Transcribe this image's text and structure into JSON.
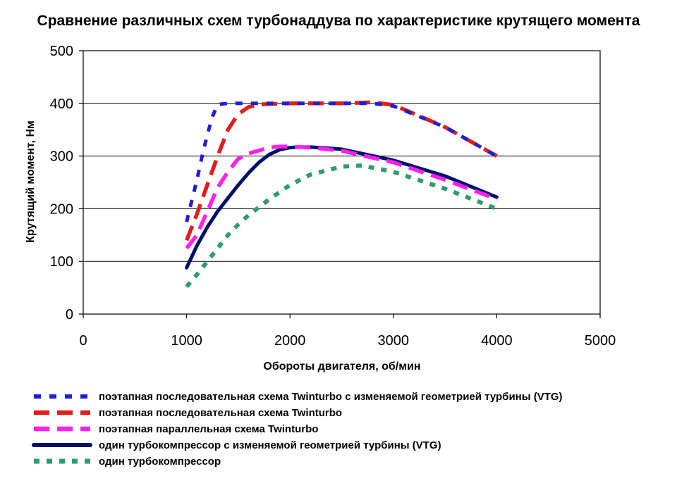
{
  "chart_data": {
    "type": "line",
    "title": "Сравнение различных схем турбонаддува по характеристике крутящего момента",
    "xlabel": "Обороты двигателя, об/мин",
    "ylabel": "Крутящий момент, Нм",
    "xlim": [
      0,
      5000
    ],
    "ylim": [
      0,
      500
    ],
    "xticks": [
      0,
      1000,
      2000,
      3000,
      4000,
      5000
    ],
    "yticks": [
      0,
      100,
      200,
      300,
      400,
      500
    ],
    "grid": "horizontal",
    "legend_position": "bottom",
    "series": [
      {
        "name": "поэтапная последовательная схема Twinturbo с изменяемой геометрией турбины (VTG)",
        "color": "#1f1fd6",
        "style": "dash-short",
        "x": [
          1000,
          1050,
          1100,
          1150,
          1200,
          1250,
          1300,
          1400,
          1500,
          2000,
          2500,
          2800,
          3000,
          3500,
          4000
        ],
        "y": [
          175,
          215,
          255,
          300,
          340,
          375,
          398,
          400,
          400,
          400,
          400,
          400,
          395,
          355,
          300
        ]
      },
      {
        "name": "поэтапная последовательная схема Twinturbo",
        "color": "#e01e1e",
        "style": "dash-long",
        "x": [
          1000,
          1100,
          1200,
          1300,
          1400,
          1500,
          1600,
          1700,
          2000,
          2500,
          2800,
          3000,
          3500,
          4000
        ],
        "y": [
          140,
          190,
          245,
          300,
          350,
          380,
          393,
          398,
          400,
          400,
          402,
          397,
          355,
          300
        ]
      },
      {
        "name": "поэтапная параллельная схема Twinturbo",
        "color": "#ff1ef0",
        "style": "dash-long",
        "x": [
          1000,
          1100,
          1200,
          1300,
          1400,
          1500,
          1600,
          1800,
          1900,
          2000,
          2200,
          2500,
          3000,
          3500,
          4000
        ],
        "y": [
          125,
          150,
          195,
          240,
          270,
          295,
          305,
          316,
          318,
          318,
          316,
          310,
          288,
          255,
          218
        ]
      },
      {
        "name": "один турбокомпрессор с изменяемой геометрией турбины (VTG)",
        "color": "#00106a",
        "style": "solid",
        "x": [
          1000,
          1100,
          1200,
          1300,
          1400,
          1500,
          1600,
          1700,
          1800,
          1900,
          2000,
          2100,
          2200,
          2500,
          3000,
          3500,
          4000
        ],
        "y": [
          88,
          130,
          165,
          195,
          220,
          245,
          268,
          288,
          303,
          312,
          316,
          317,
          317,
          313,
          292,
          262,
          222
        ]
      },
      {
        "name": "один турбокомпрессор",
        "color": "#2e9d6a",
        "style": "dash-square",
        "x": [
          1000,
          1100,
          1200,
          1300,
          1400,
          1500,
          1600,
          1700,
          1800,
          2000,
          2200,
          2500,
          2700,
          3000,
          3500,
          4000
        ],
        "y": [
          52,
          75,
          100,
          125,
          150,
          170,
          188,
          203,
          218,
          245,
          265,
          280,
          282,
          270,
          238,
          200
        ]
      }
    ]
  }
}
